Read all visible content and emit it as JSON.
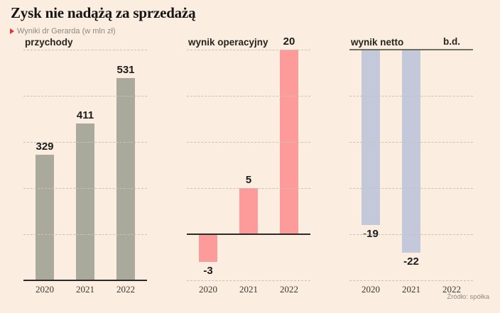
{
  "header": {
    "title": "Zysk nie nadążą za sprzedażą",
    "subtitle": "Wyniki dr Gerarda (w mln zł)"
  },
  "source_note": "Źródło: spółka",
  "colors": {
    "background": "#fbeddf",
    "accent_red": "#e8312a",
    "grid_dashed": "#c9c2b5",
    "axis_dark": "#2b2a27",
    "axis_olive": "#71705f",
    "revenue_bar": "#a9a99c",
    "operating_bar": "#fc9b99",
    "net_bar": "#c3c9da"
  },
  "chart_data": [
    {
      "type": "bar",
      "title": "przychody",
      "categories": [
        "2020",
        "2021",
        "2022"
      ],
      "values": [
        329,
        411,
        531
      ],
      "bar_color": "#a9a99c",
      "ylim": [
        0,
        600
      ],
      "grid": "horizontal-dashed",
      "no_data_label": null
    },
    {
      "type": "bar",
      "title": "wynik operacyjny",
      "categories": [
        "2020",
        "2021",
        "2022"
      ],
      "values": [
        -3,
        5,
        20
      ],
      "bar_color": "#fc9b99",
      "ylim": [
        -5,
        20
      ],
      "grid": "horizontal-dashed",
      "no_data_label": null
    },
    {
      "type": "bar",
      "title": "wynik netto",
      "categories": [
        "2020",
        "2021",
        "2022"
      ],
      "values": [
        -19,
        -22,
        null
      ],
      "bar_color": "#c3c9da",
      "ylim": [
        -25,
        0
      ],
      "grid": "horizontal-dashed",
      "no_data_label": "b.d."
    }
  ]
}
